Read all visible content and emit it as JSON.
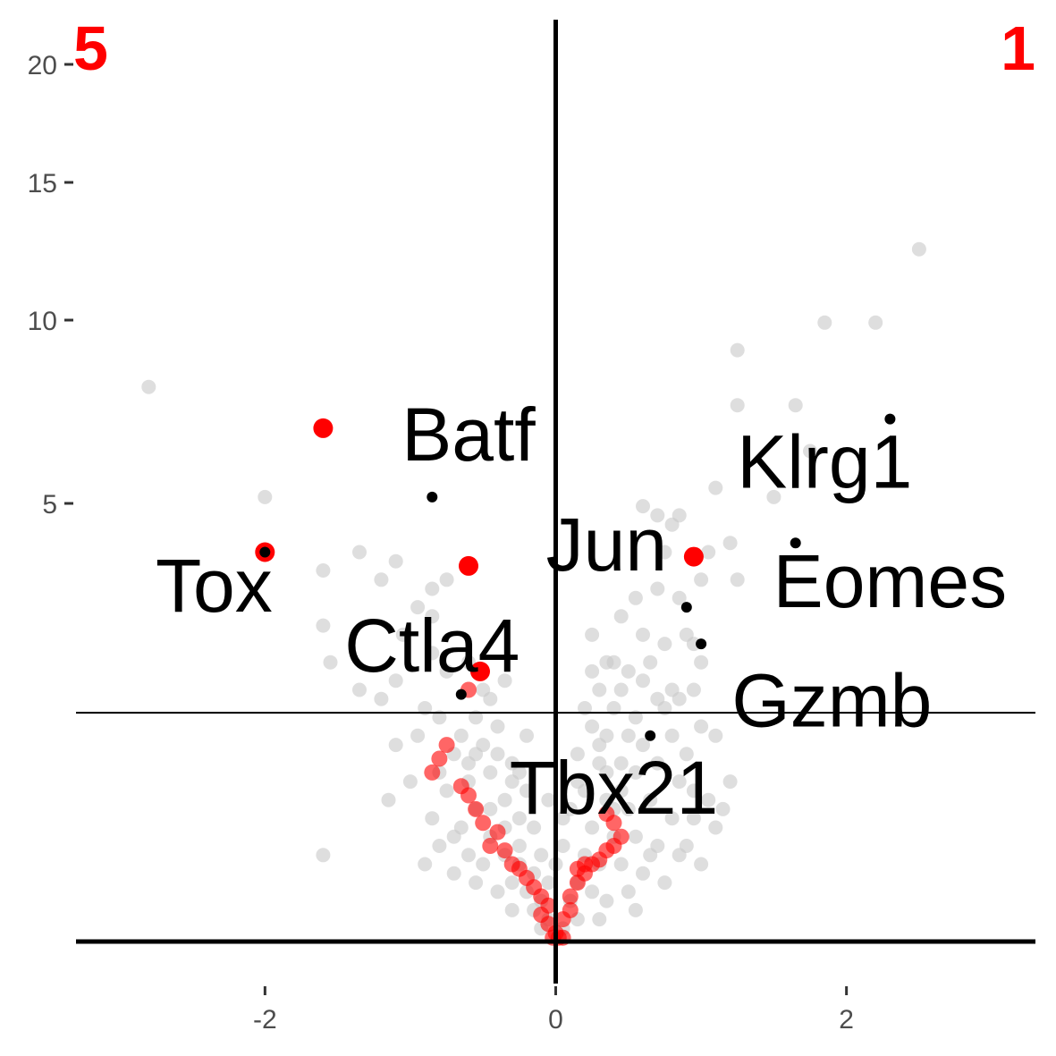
{
  "chart_data": {
    "type": "scatter",
    "title": "",
    "xlabel": "",
    "ylabel": "",
    "xlim": [
      -3.3,
      3.3
    ],
    "ylim": [
      -0.05,
      1.0
    ],
    "x_ticks": [
      {
        "value": -2,
        "label": "-2"
      },
      {
        "value": 0,
        "label": "0"
      },
      {
        "value": 2,
        "label": "2"
      }
    ],
    "y_ticks": [
      {
        "value": 5,
        "label": "5"
      },
      {
        "value": 10,
        "label": "10"
      },
      {
        "value": 15,
        "label": "15"
      },
      {
        "value": 20,
        "label": "20"
      }
    ],
    "y_axis_note": "y axis is non-linear (square-root-like transform); tick labels 5, 10, 15, 20",
    "threshold_y": 0.245,
    "corner_labels": {
      "left": "5",
      "right": "1"
    },
    "colors": {
      "background_genes": "#c8c8c8",
      "highlighted_genes": "#ff0000",
      "labeled_genes": "#000000",
      "corner_text": "#ff0000"
    },
    "series": [
      {
        "color": "#c8c8c8",
        "points": [
          [
            -2.8,
            0.6
          ],
          [
            -2.0,
            0.48
          ],
          [
            -1.6,
            0.4
          ],
          [
            -1.6,
            0.34
          ],
          [
            -1.35,
            0.42
          ],
          [
            -1.1,
            0.41
          ],
          [
            -1.2,
            0.39
          ],
          [
            -0.75,
            0.39
          ],
          [
            -0.85,
            0.38
          ],
          [
            -0.95,
            0.36
          ],
          [
            -0.85,
            0.35
          ],
          [
            -1.05,
            0.33
          ],
          [
            -1.55,
            0.3
          ],
          [
            -1.35,
            0.27
          ],
          [
            -1.1,
            0.28
          ],
          [
            -0.75,
            0.29
          ],
          [
            -0.6,
            0.3
          ],
          [
            -0.85,
            0.31
          ],
          [
            -1.2,
            0.26
          ],
          [
            -0.5,
            0.27
          ],
          [
            -0.9,
            0.25
          ],
          [
            -0.8,
            0.24
          ],
          [
            -0.95,
            0.22
          ],
          [
            -1.1,
            0.21
          ],
          [
            -0.7,
            0.2
          ],
          [
            -0.6,
            0.19
          ],
          [
            -0.5,
            0.21
          ],
          [
            -0.4,
            0.2
          ],
          [
            -0.45,
            0.18
          ],
          [
            -0.3,
            0.17
          ],
          [
            -0.35,
            0.15
          ],
          [
            -0.25,
            0.13
          ],
          [
            -0.55,
            0.14
          ],
          [
            -0.65,
            0.12
          ],
          [
            -0.75,
            0.16
          ],
          [
            -0.85,
            0.13
          ],
          [
            -1.0,
            0.17
          ],
          [
            -1.15,
            0.15
          ],
          [
            -0.45,
            0.11
          ],
          [
            -0.35,
            0.09
          ],
          [
            -0.25,
            0.08
          ],
          [
            -0.15,
            0.07
          ],
          [
            -0.3,
            0.06
          ],
          [
            -0.5,
            0.08
          ],
          [
            -0.6,
            0.09
          ],
          [
            -0.7,
            0.07
          ],
          [
            -0.8,
            0.1
          ],
          [
            -0.2,
            0.05
          ],
          [
            -0.1,
            0.04
          ],
          [
            -0.15,
            0.03
          ],
          [
            -0.05,
            0.02
          ],
          [
            -0.1,
            0.01
          ],
          [
            -0.4,
            0.05
          ],
          [
            -0.55,
            0.06
          ],
          [
            -0.9,
            0.08
          ],
          [
            -1.6,
            0.09
          ],
          [
            -0.35,
            0.12
          ],
          [
            -0.25,
            0.1
          ],
          [
            -0.2,
            0.16
          ],
          [
            -0.15,
            0.12
          ],
          [
            -0.1,
            0.09
          ],
          [
            -0.05,
            0.06
          ],
          [
            -0.6,
            0.17
          ],
          [
            -0.4,
            0.23
          ],
          [
            -0.2,
            0.22
          ],
          [
            -0.3,
            0.19
          ],
          [
            -0.65,
            0.22
          ],
          [
            -0.55,
            0.24
          ],
          [
            -0.45,
            0.26
          ],
          [
            -0.35,
            0.28
          ],
          [
            2.5,
            0.75
          ],
          [
            1.85,
            0.67
          ],
          [
            2.2,
            0.67
          ],
          [
            1.25,
            0.64
          ],
          [
            1.25,
            0.58
          ],
          [
            1.65,
            0.58
          ],
          [
            1.75,
            0.53
          ],
          [
            1.1,
            0.49
          ],
          [
            1.5,
            0.48
          ],
          [
            0.6,
            0.47
          ],
          [
            0.7,
            0.46
          ],
          [
            0.8,
            0.45
          ],
          [
            0.85,
            0.46
          ],
          [
            1.2,
            0.43
          ],
          [
            0.75,
            0.42
          ],
          [
            1.0,
            0.39
          ],
          [
            1.05,
            0.42
          ],
          [
            1.25,
            0.39
          ],
          [
            0.55,
            0.37
          ],
          [
            0.7,
            0.38
          ],
          [
            0.85,
            0.37
          ],
          [
            0.45,
            0.35
          ],
          [
            0.6,
            0.33
          ],
          [
            0.9,
            0.33
          ],
          [
            0.95,
            0.32
          ],
          [
            1.0,
            0.3
          ],
          [
            0.4,
            0.3
          ],
          [
            0.5,
            0.29
          ],
          [
            0.25,
            0.29
          ],
          [
            0.3,
            0.27
          ],
          [
            0.6,
            0.28
          ],
          [
            0.8,
            0.27
          ],
          [
            0.2,
            0.25
          ],
          [
            0.4,
            0.25
          ],
          [
            0.55,
            0.24
          ],
          [
            0.75,
            0.25
          ],
          [
            0.85,
            0.26
          ],
          [
            0.95,
            0.27
          ],
          [
            0.25,
            0.23
          ],
          [
            0.35,
            0.22
          ],
          [
            0.5,
            0.22
          ],
          [
            0.6,
            0.21
          ],
          [
            0.8,
            0.22
          ],
          [
            0.9,
            0.2
          ],
          [
            1.0,
            0.23
          ],
          [
            1.1,
            0.22
          ],
          [
            0.15,
            0.2
          ],
          [
            0.3,
            0.19
          ],
          [
            0.45,
            0.19
          ],
          [
            0.55,
            0.18
          ],
          [
            0.7,
            0.19
          ],
          [
            0.85,
            0.17
          ],
          [
            0.95,
            0.16
          ],
          [
            1.05,
            0.15
          ],
          [
            1.2,
            0.17
          ],
          [
            0.2,
            0.16
          ],
          [
            0.35,
            0.15
          ],
          [
            0.5,
            0.14
          ],
          [
            0.65,
            0.15
          ],
          [
            0.8,
            0.13
          ],
          [
            0.95,
            0.13
          ],
          [
            1.1,
            0.12
          ],
          [
            0.25,
            0.12
          ],
          [
            0.4,
            0.11
          ],
          [
            0.55,
            0.11
          ],
          [
            0.7,
            0.1
          ],
          [
            0.85,
            0.09
          ],
          [
            1.0,
            0.08
          ],
          [
            0.2,
            0.09
          ],
          [
            0.3,
            0.08
          ],
          [
            0.45,
            0.08
          ],
          [
            0.6,
            0.07
          ],
          [
            0.75,
            0.06
          ],
          [
            0.15,
            0.06
          ],
          [
            0.25,
            0.05
          ],
          [
            0.35,
            0.04
          ],
          [
            0.5,
            0.05
          ],
          [
            0.1,
            0.04
          ],
          [
            0.15,
            0.02
          ],
          [
            0.05,
            0.01
          ],
          [
            0.3,
            0.02
          ],
          [
            0.4,
            0.14
          ],
          [
            0.35,
            0.18
          ],
          [
            0.3,
            0.21
          ],
          [
            0.45,
            0.27
          ],
          [
            0.65,
            0.3
          ],
          [
            0.7,
            0.26
          ],
          [
            0.1,
            0.14
          ],
          [
            0.05,
            0.1
          ],
          [
            0.15,
            0.17
          ],
          [
            -0.05,
            0.15
          ],
          [
            0.0,
            0.08
          ],
          [
            0.05,
            0.13
          ],
          [
            -0.25,
            0.18
          ],
          [
            0.65,
            0.09
          ],
          [
            0.9,
            0.1
          ],
          [
            0.55,
            0.03
          ],
          [
            -0.3,
            0.03
          ],
          [
            -0.45,
            0.14
          ],
          [
            -0.7,
            0.11
          ],
          [
            -0.55,
            0.2
          ],
          [
            -0.8,
            0.18
          ],
          [
            0.25,
            0.33
          ],
          [
            0.35,
            0.3
          ],
          [
            1.15,
            0.14
          ],
          [
            0.75,
            0.32
          ],
          [
            0.45,
            0.16
          ]
        ]
      },
      {
        "color": "#ff0000",
        "points": [
          [
            -1.6,
            0.555
          ],
          [
            -2.0,
            0.42
          ],
          [
            -0.6,
            0.405
          ],
          [
            0.95,
            0.415
          ],
          [
            -0.52,
            0.29
          ],
          [
            -0.6,
            0.27
          ],
          [
            -0.75,
            0.21
          ],
          [
            -0.8,
            0.195
          ],
          [
            -0.85,
            0.18
          ],
          [
            -0.65,
            0.165
          ],
          [
            -0.6,
            0.155
          ],
          [
            -0.55,
            0.14
          ],
          [
            -0.5,
            0.125
          ],
          [
            -0.4,
            0.115
          ],
          [
            -0.45,
            0.1
          ],
          [
            -0.35,
            0.095
          ],
          [
            -0.3,
            0.08
          ],
          [
            -0.25,
            0.075
          ],
          [
            -0.2,
            0.065
          ],
          [
            -0.15,
            0.055
          ],
          [
            -0.1,
            0.045
          ],
          [
            -0.05,
            0.035
          ],
          [
            -0.1,
            0.025
          ],
          [
            -0.05,
            0.015
          ],
          [
            0.0,
            0.005
          ],
          [
            0.05,
            0.0
          ],
          [
            -0.02,
            0.0
          ],
          [
            0.02,
            0.0
          ],
          [
            0.05,
            0.02
          ],
          [
            0.1,
            0.03
          ],
          [
            0.1,
            0.045
          ],
          [
            0.15,
            0.06
          ],
          [
            0.2,
            0.07
          ],
          [
            0.25,
            0.08
          ],
          [
            0.3,
            0.085
          ],
          [
            0.35,
            0.095
          ],
          [
            0.4,
            0.1
          ],
          [
            0.45,
            0.11
          ],
          [
            0.4,
            0.125
          ],
          [
            0.35,
            0.135
          ],
          [
            0.2,
            0.08
          ],
          [
            0.15,
            0.075
          ]
        ]
      },
      {
        "color": "#000000",
        "points": [
          [
            2.3,
            0.565
          ],
          [
            1.65,
            0.43
          ],
          [
            0.9,
            0.36
          ],
          [
            1.0,
            0.32
          ],
          [
            0.65,
            0.22
          ],
          [
            -0.85,
            0.48
          ],
          [
            -2.0,
            0.42
          ],
          [
            -0.65,
            0.265
          ]
        ]
      }
    ],
    "gene_labels": [
      {
        "text": "Batf",
        "x": -0.6,
        "y": 0.52
      },
      {
        "text": "Klrg1",
        "x": 1.85,
        "y": 0.49
      },
      {
        "text": "Jun",
        "x": 0.35,
        "y": 0.4
      },
      {
        "text": "Eomes",
        "x": 2.3,
        "y": 0.36
      },
      {
        "text": "Tox",
        "x": -2.35,
        "y": 0.355
      },
      {
        "text": "Ctla4",
        "x": -0.85,
        "y": 0.29
      },
      {
        "text": "Gzmb",
        "x": 1.9,
        "y": 0.23
      },
      {
        "text": "Tbx21",
        "x": 0.4,
        "y": 0.135
      }
    ]
  }
}
